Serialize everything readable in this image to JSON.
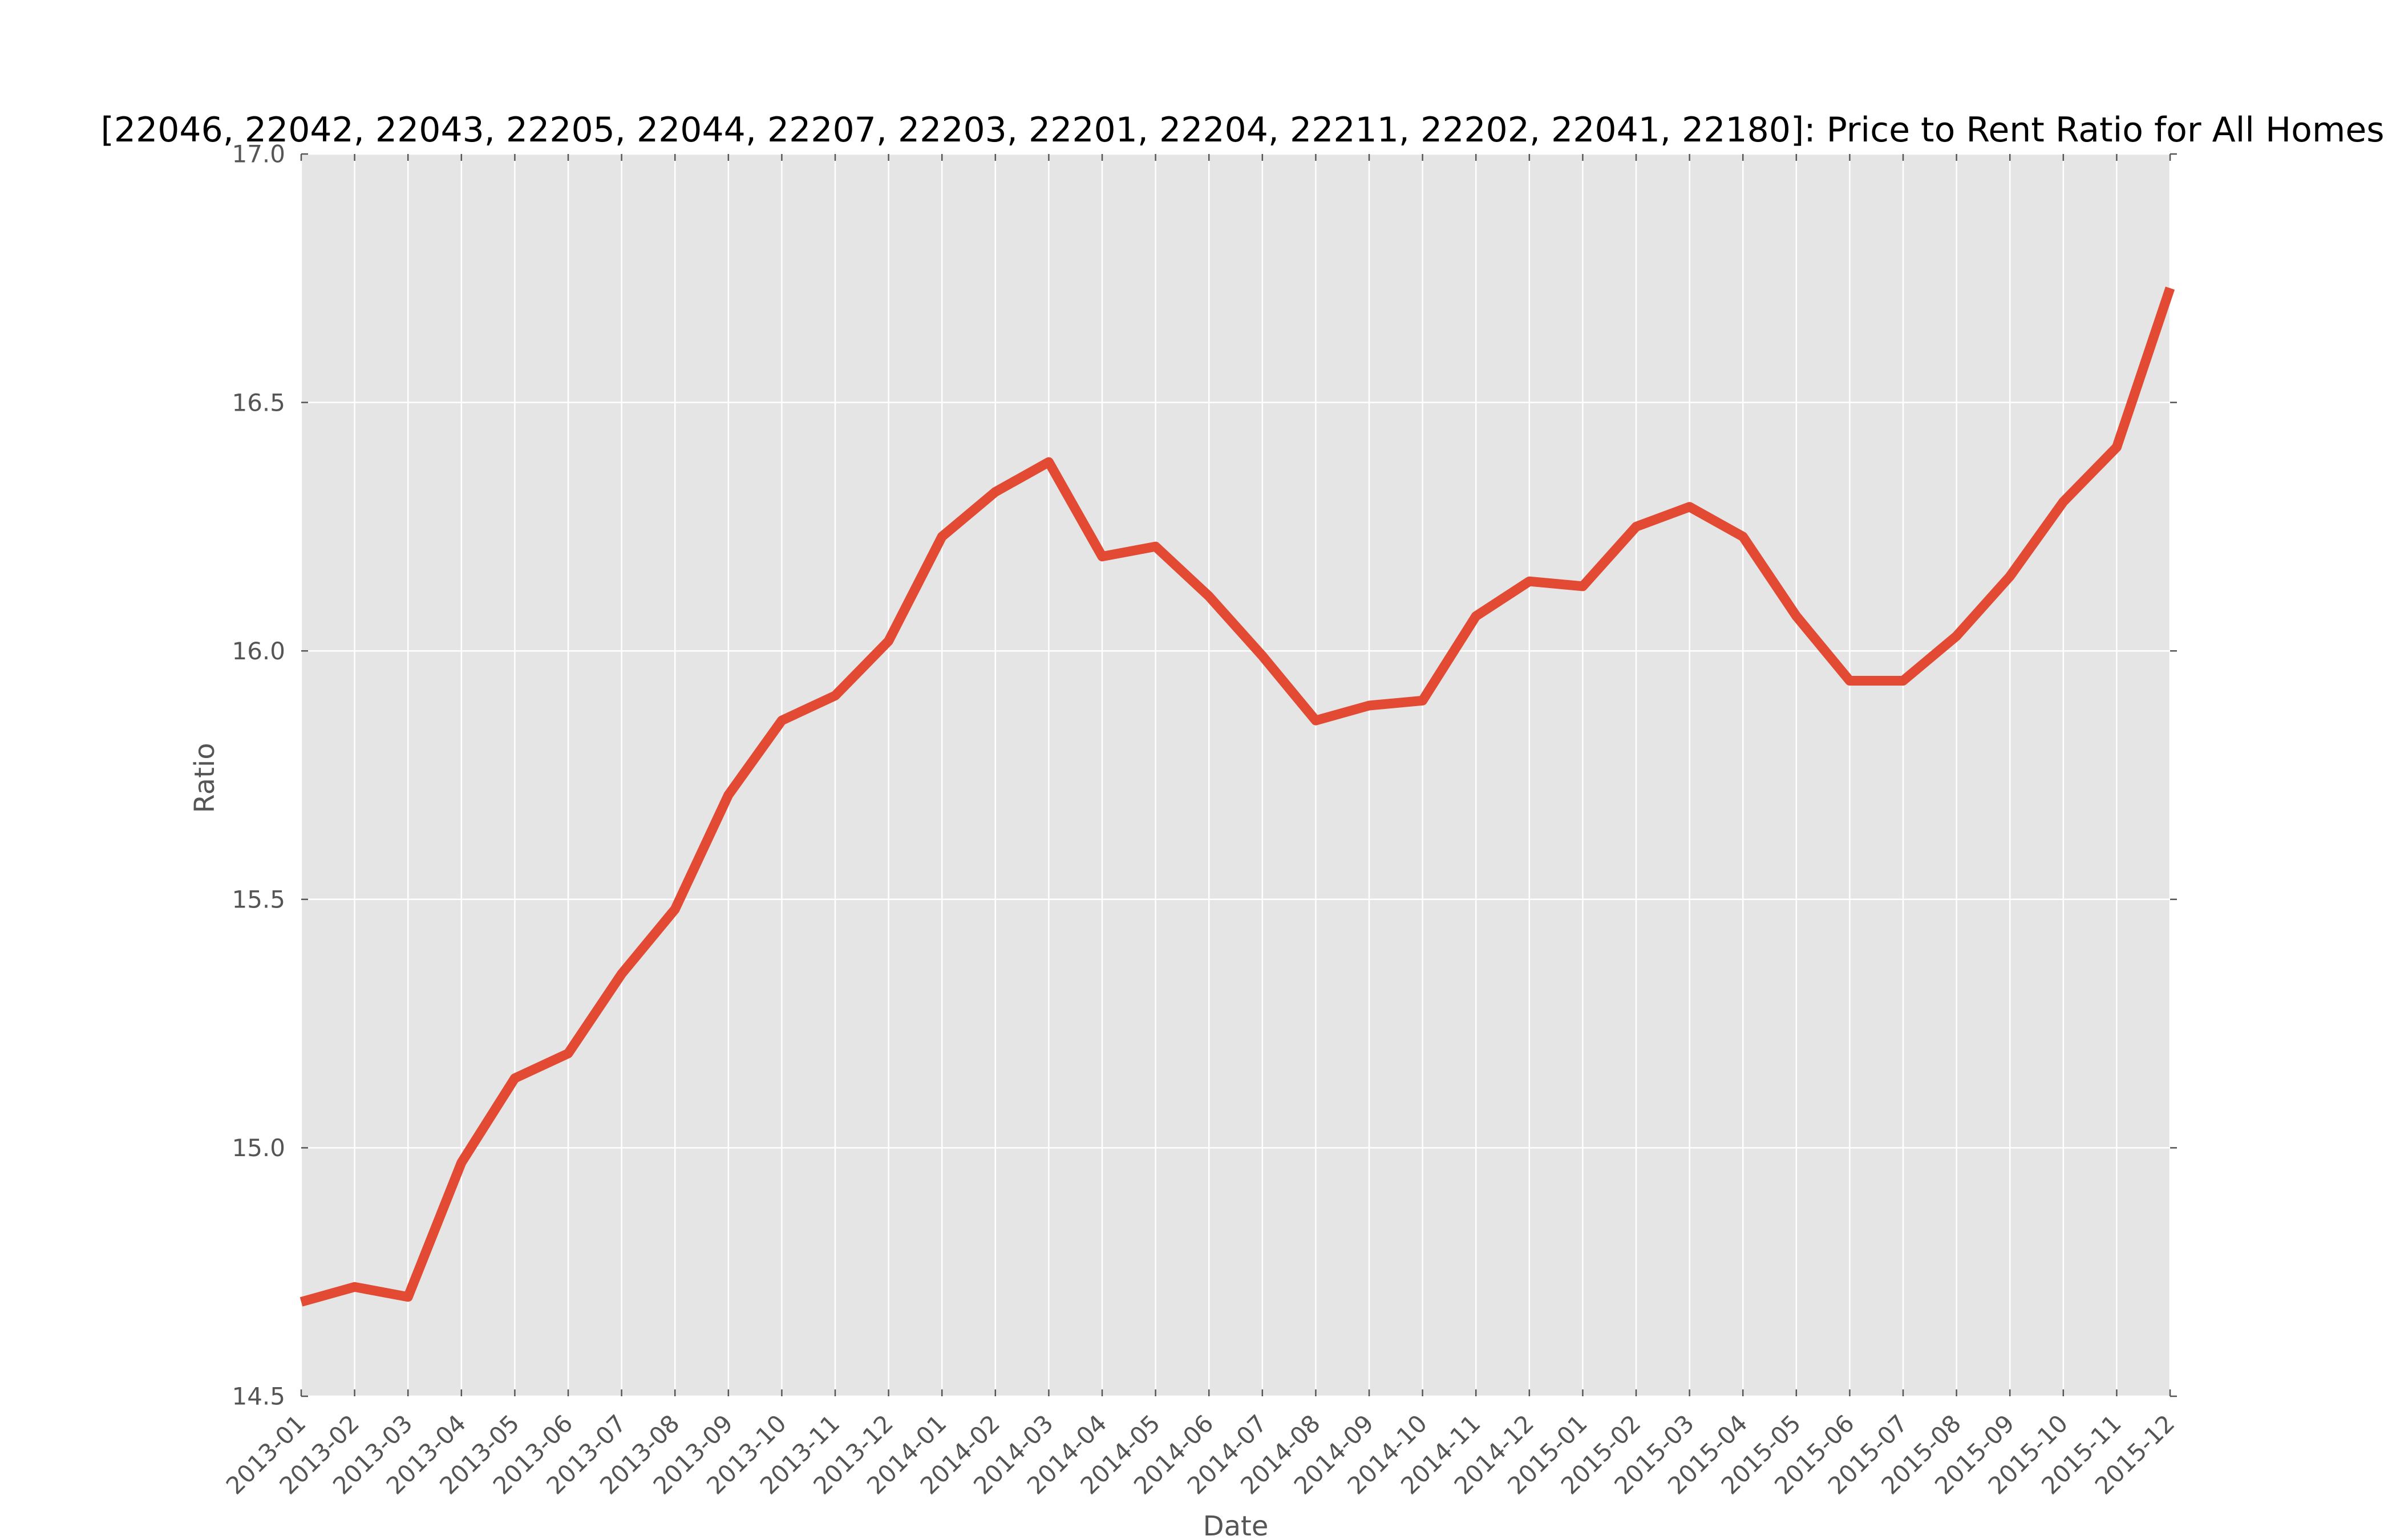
{
  "chart_data": {
    "type": "line",
    "title": "[22046, 22042, 22043, 22205, 22044, 22207, 22203, 22201, 22204, 22211, 22202, 22041, 22180]: Price to Rent Ratio for All Homes",
    "xlabel": "Date",
    "ylabel": "Ratio",
    "ylim": [
      14.5,
      17.0
    ],
    "yticks": [
      14.5,
      15.0,
      15.5,
      16.0,
      16.5,
      17.0
    ],
    "ytick_labels": [
      "14.5",
      "15.0",
      "15.5",
      "16.0",
      "16.5",
      "17.0"
    ],
    "grid": true,
    "legend": "none",
    "categories": [
      "2013-01",
      "2013-02",
      "2013-03",
      "2013-04",
      "2013-05",
      "2013-06",
      "2013-07",
      "2013-08",
      "2013-09",
      "2013-10",
      "2013-11",
      "2013-12",
      "2014-01",
      "2014-02",
      "2014-03",
      "2014-04",
      "2014-05",
      "2014-06",
      "2014-07",
      "2014-08",
      "2014-09",
      "2014-10",
      "2014-11",
      "2014-12",
      "2015-01",
      "2015-02",
      "2015-03",
      "2015-04",
      "2015-05",
      "2015-06",
      "2015-07",
      "2015-08",
      "2015-09",
      "2015-10",
      "2015-11",
      "2015-12"
    ],
    "series": [
      {
        "color": "#e24a33",
        "values": [
          14.69,
          14.72,
          14.7,
          14.97,
          15.14,
          15.19,
          15.35,
          15.48,
          15.71,
          15.86,
          15.91,
          16.02,
          16.23,
          16.32,
          16.38,
          16.19,
          16.21,
          16.11,
          15.99,
          15.86,
          15.89,
          15.9,
          16.07,
          16.14,
          16.13,
          16.25,
          16.29,
          16.23,
          16.07,
          15.94,
          15.94,
          16.03,
          16.15,
          16.3,
          16.41,
          16.73
        ]
      }
    ],
    "colors": {
      "background": "#e5e5e5",
      "grid": "#ffffff",
      "line": "#e24a33",
      "tick_text": "#555555"
    }
  }
}
